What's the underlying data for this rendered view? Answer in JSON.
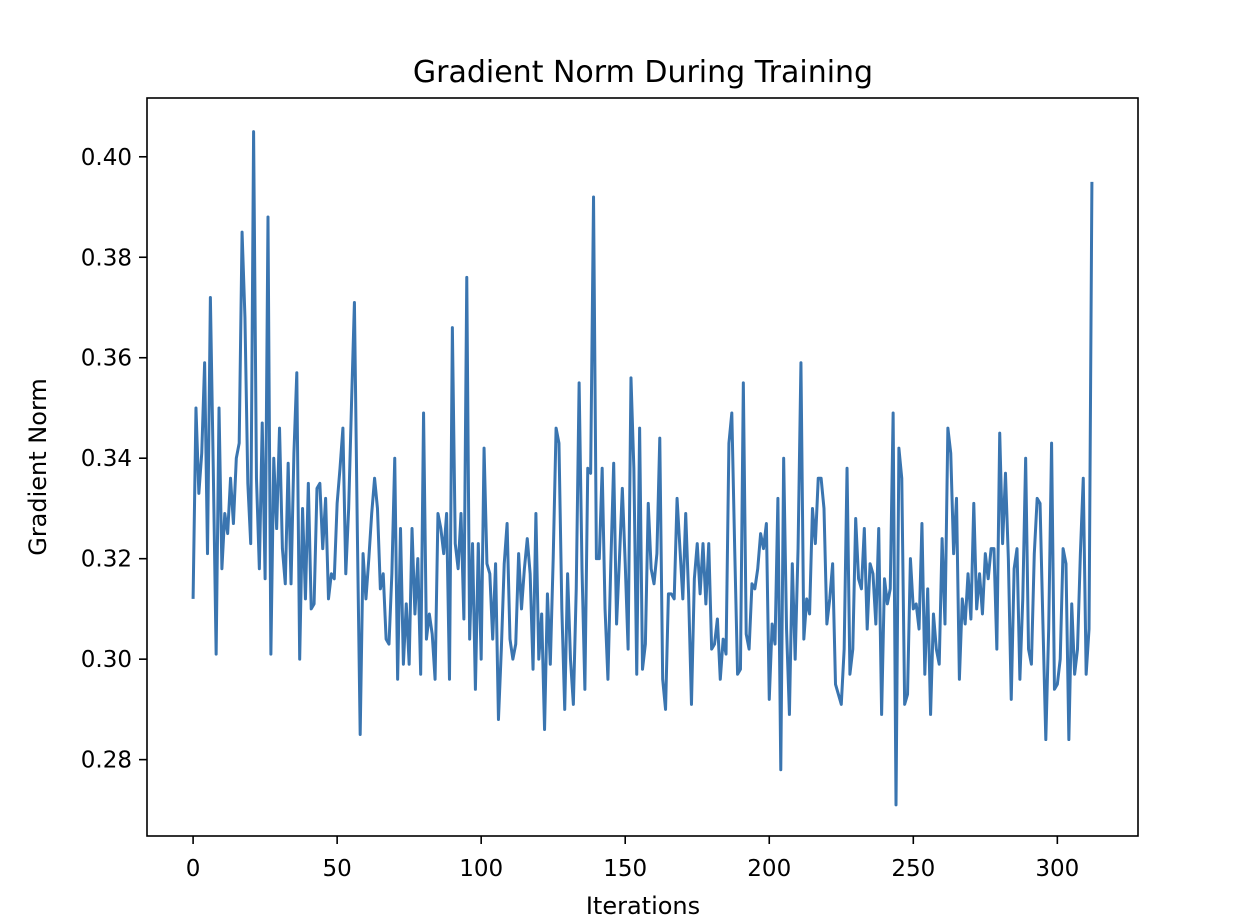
{
  "chart_data": {
    "type": "line",
    "title": "Gradient Norm During Training",
    "xlabel": "Iterations",
    "ylabel": "Gradient Norm",
    "xlim": [
      -16,
      328
    ],
    "ylim": [
      0.2648,
      0.4117
    ],
    "x_ticks": [
      0,
      50,
      100,
      150,
      200,
      250,
      300
    ],
    "x_tick_labels": [
      "0",
      "50",
      "100",
      "150",
      "200",
      "250",
      "300"
    ],
    "y_ticks": [
      0.28,
      0.3,
      0.32,
      0.34,
      0.36,
      0.38,
      0.4
    ],
    "y_tick_labels": [
      "0.28",
      "0.30",
      "0.32",
      "0.34",
      "0.36",
      "0.38",
      "0.40"
    ],
    "grid": false,
    "series": [
      {
        "color": "#3a75b0",
        "x_start": 0,
        "x_step": 1,
        "values": [
          0.312,
          0.35,
          0.333,
          0.341,
          0.359,
          0.321,
          0.372,
          0.338,
          0.301,
          0.35,
          0.318,
          0.329,
          0.325,
          0.336,
          0.327,
          0.34,
          0.343,
          0.385,
          0.368,
          0.335,
          0.323,
          0.405,
          0.336,
          0.318,
          0.347,
          0.316,
          0.388,
          0.301,
          0.34,
          0.326,
          0.346,
          0.322,
          0.315,
          0.339,
          0.315,
          0.341,
          0.357,
          0.3,
          0.33,
          0.312,
          0.335,
          0.31,
          0.311,
          0.334,
          0.335,
          0.322,
          0.332,
          0.312,
          0.317,
          0.316,
          0.331,
          0.338,
          0.346,
          0.317,
          0.33,
          0.351,
          0.371,
          0.326,
          0.285,
          0.321,
          0.312,
          0.32,
          0.329,
          0.336,
          0.33,
          0.314,
          0.317,
          0.304,
          0.303,
          0.317,
          0.34,
          0.296,
          0.326,
          0.299,
          0.311,
          0.299,
          0.326,
          0.309,
          0.32,
          0.297,
          0.349,
          0.304,
          0.309,
          0.305,
          0.296,
          0.329,
          0.326,
          0.321,
          0.329,
          0.296,
          0.366,
          0.323,
          0.318,
          0.329,
          0.308,
          0.376,
          0.304,
          0.323,
          0.294,
          0.323,
          0.3,
          0.342,
          0.319,
          0.317,
          0.304,
          0.319,
          0.288,
          0.302,
          0.319,
          0.327,
          0.304,
          0.3,
          0.303,
          0.321,
          0.31,
          0.318,
          0.324,
          0.317,
          0.298,
          0.329,
          0.3,
          0.309,
          0.286,
          0.313,
          0.299,
          0.32,
          0.346,
          0.343,
          0.31,
          0.29,
          0.317,
          0.3,
          0.291,
          0.314,
          0.355,
          0.318,
          0.294,
          0.338,
          0.337,
          0.392,
          0.32,
          0.32,
          0.338,
          0.31,
          0.296,
          0.319,
          0.339,
          0.307,
          0.32,
          0.334,
          0.319,
          0.302,
          0.356,
          0.338,
          0.297,
          0.346,
          0.298,
          0.303,
          0.331,
          0.318,
          0.315,
          0.321,
          0.344,
          0.296,
          0.29,
          0.313,
          0.313,
          0.312,
          0.332,
          0.322,
          0.312,
          0.329,
          0.313,
          0.291,
          0.316,
          0.323,
          0.313,
          0.323,
          0.311,
          0.323,
          0.302,
          0.303,
          0.308,
          0.296,
          0.304,
          0.301,
          0.343,
          0.349,
          0.322,
          0.297,
          0.298,
          0.355,
          0.305,
          0.302,
          0.315,
          0.314,
          0.318,
          0.325,
          0.322,
          0.327,
          0.292,
          0.307,
          0.303,
          0.332,
          0.278,
          0.34,
          0.306,
          0.289,
          0.319,
          0.3,
          0.322,
          0.359,
          0.304,
          0.312,
          0.309,
          0.33,
          0.323,
          0.336,
          0.336,
          0.33,
          0.307,
          0.312,
          0.319,
          0.295,
          0.293,
          0.291,
          0.302,
          0.338,
          0.297,
          0.302,
          0.328,
          0.316,
          0.314,
          0.326,
          0.306,
          0.319,
          0.317,
          0.307,
          0.326,
          0.289,
          0.316,
          0.311,
          0.314,
          0.349,
          0.271,
          0.342,
          0.336,
          0.291,
          0.293,
          0.32,
          0.31,
          0.311,
          0.306,
          0.327,
          0.297,
          0.314,
          0.289,
          0.309,
          0.302,
          0.299,
          0.324,
          0.307,
          0.346,
          0.341,
          0.321,
          0.332,
          0.296,
          0.312,
          0.307,
          0.317,
          0.308,
          0.331,
          0.31,
          0.317,
          0.309,
          0.321,
          0.316,
          0.322,
          0.322,
          0.302,
          0.345,
          0.323,
          0.337,
          0.32,
          0.292,
          0.318,
          0.322,
          0.296,
          0.312,
          0.34,
          0.302,
          0.299,
          0.321,
          0.332,
          0.331,
          0.307,
          0.284,
          0.306,
          0.343,
          0.294,
          0.295,
          0.3,
          0.322,
          0.319,
          0.284,
          0.311,
          0.297,
          0.302,
          0.321,
          0.336,
          0.297,
          0.306,
          0.395
        ]
      }
    ]
  }
}
